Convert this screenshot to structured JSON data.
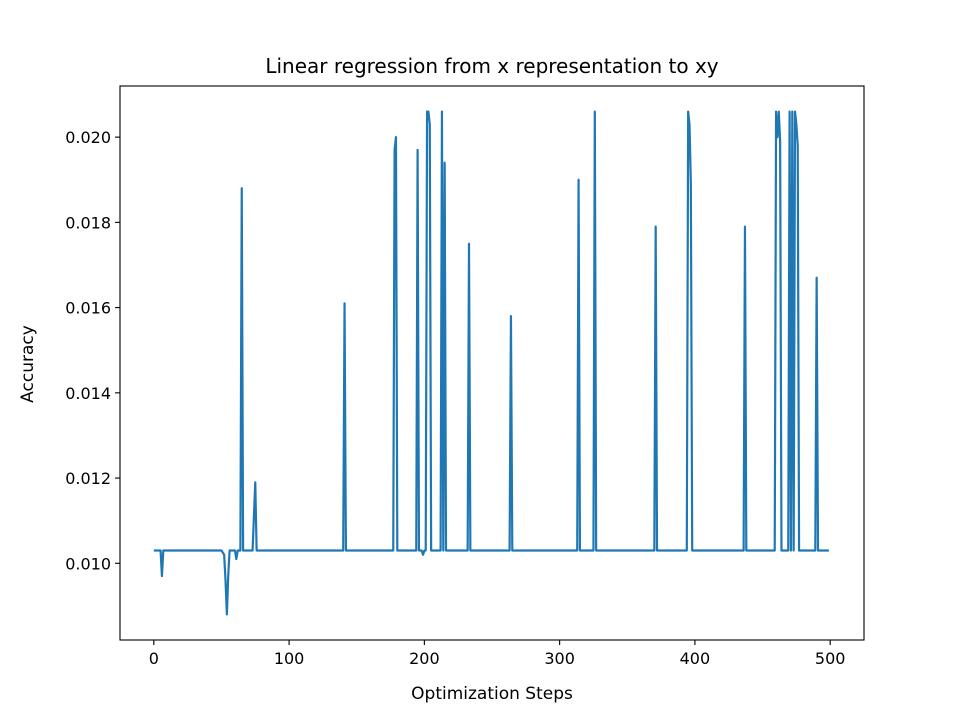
{
  "chart_data": {
    "type": "line",
    "title": "Linear regression from x representation to xy",
    "xlabel": "Optimization Steps",
    "ylabel": "Accuracy",
    "xlim": [
      -25,
      525
    ],
    "ylim": [
      0.0082,
      0.0212
    ],
    "xticks": [
      0,
      100,
      200,
      300,
      400,
      500
    ],
    "xtick_labels": [
      "0",
      "100",
      "200",
      "300",
      "400",
      "500"
    ],
    "yticks": [
      0.01,
      0.012,
      0.014,
      0.016,
      0.018,
      0.02
    ],
    "ytick_labels": [
      "0.010",
      "0.012",
      "0.014",
      "0.016",
      "0.018",
      "0.020"
    ],
    "grid": false,
    "series": [
      {
        "color": "#1f77b4",
        "x": [
          0,
          5,
          6,
          7,
          8,
          50,
          52,
          53,
          54,
          55,
          56,
          58,
          60,
          61,
          62,
          64,
          65,
          66,
          67,
          68,
          73,
          75,
          76,
          77,
          78,
          140,
          141,
          142,
          143,
          177,
          178,
          179,
          180,
          194,
          195,
          196,
          198,
          199,
          200,
          201,
          202,
          203,
          204,
          205,
          212,
          213,
          214,
          215,
          216,
          217,
          232,
          233,
          234,
          263,
          264,
          265,
          313,
          314,
          315,
          325,
          326,
          327,
          370,
          371,
          372,
          394,
          395,
          396,
          397,
          398,
          436,
          437,
          438,
          459,
          460,
          461,
          462,
          463,
          464,
          469,
          470,
          471,
          472,
          473,
          474,
          475,
          476,
          477,
          478,
          479,
          489,
          490,
          491,
          492,
          499
        ],
        "y": [
          0.0103,
          0.0103,
          0.0097,
          0.0103,
          0.0103,
          0.0103,
          0.0102,
          0.0096,
          0.0088,
          0.0097,
          0.0103,
          0.0103,
          0.0103,
          0.0101,
          0.0103,
          0.0103,
          0.0188,
          0.0103,
          0.0103,
          0.0103,
          0.0103,
          0.0119,
          0.0103,
          0.0103,
          0.0103,
          0.0103,
          0.0161,
          0.0103,
          0.0103,
          0.0103,
          0.0197,
          0.02,
          0.0103,
          0.0103,
          0.0197,
          0.0103,
          0.0103,
          0.0102,
          0.0103,
          0.0103,
          0.0206,
          0.0206,
          0.0203,
          0.0103,
          0.0103,
          0.0206,
          0.0103,
          0.0194,
          0.0103,
          0.0103,
          0.0103,
          0.0175,
          0.0103,
          0.0103,
          0.0158,
          0.0103,
          0.0103,
          0.019,
          0.0103,
          0.0103,
          0.0206,
          0.0103,
          0.0103,
          0.0179,
          0.0103,
          0.0103,
          0.0206,
          0.0203,
          0.0189,
          0.0103,
          0.0103,
          0.0179,
          0.0103,
          0.0103,
          0.0206,
          0.02,
          0.0206,
          0.0199,
          0.0103,
          0.0103,
          0.0206,
          0.0103,
          0.0206,
          0.0103,
          0.0206,
          0.0203,
          0.0198,
          0.0103,
          0.0103,
          0.0103,
          0.0103,
          0.0167,
          0.0103,
          0.0103,
          0.0103
        ]
      }
    ]
  }
}
